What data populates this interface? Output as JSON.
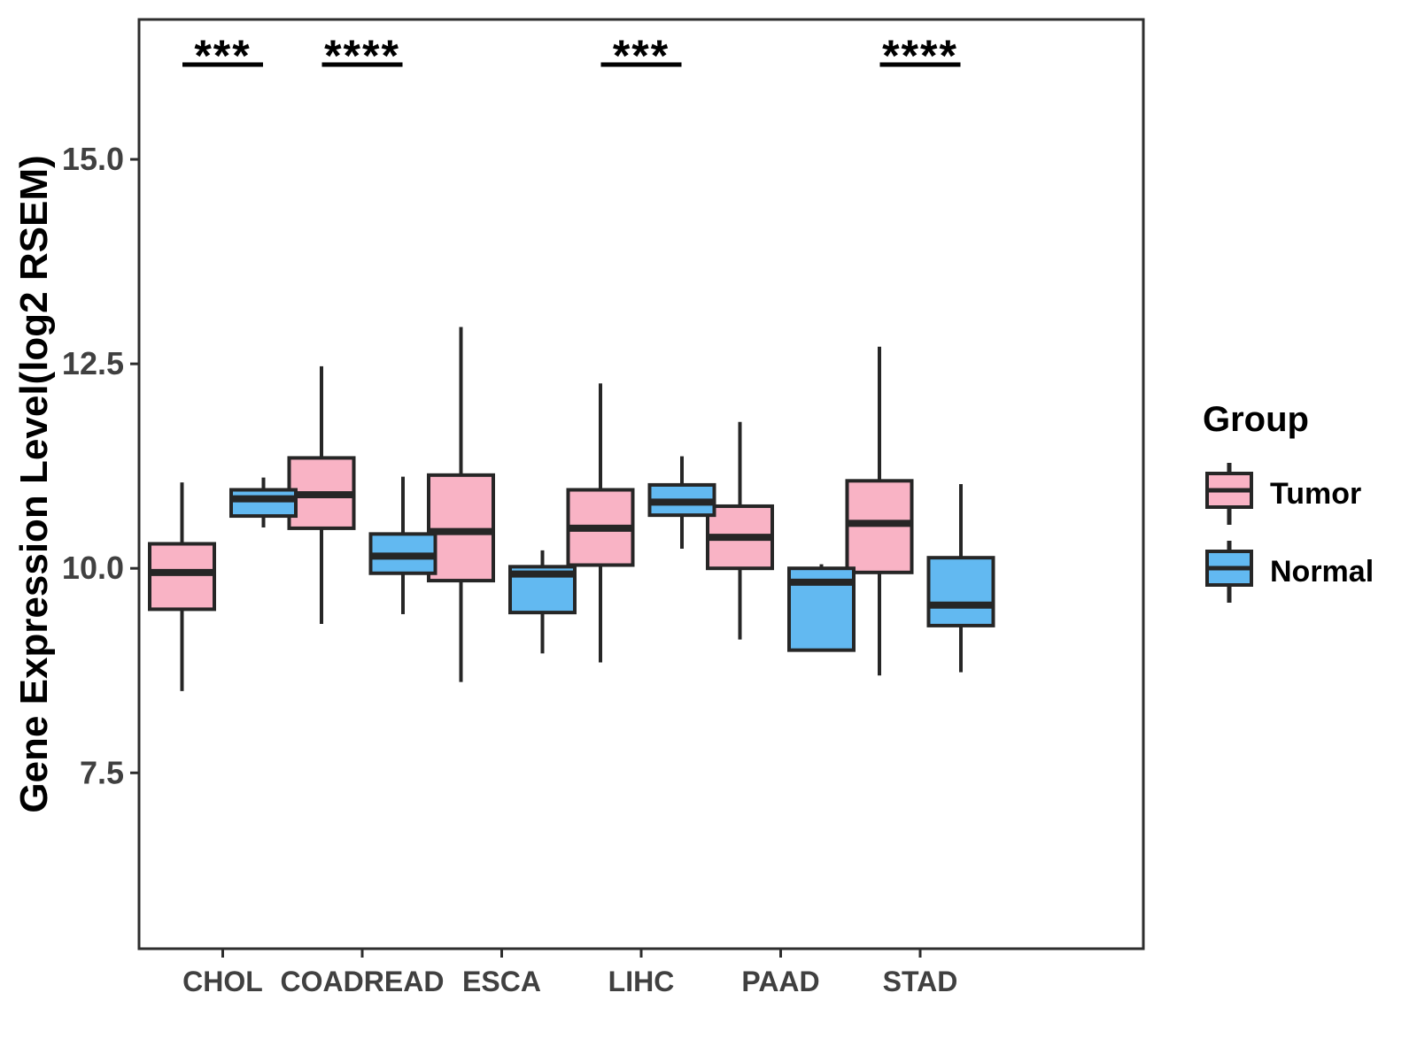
{
  "y_axis": {
    "label": "Gene Expression Level(log2 RSEM)",
    "ticks": [
      7.5,
      10.0,
      12.5,
      15.0
    ],
    "tick_labels": [
      "7.5",
      "10.0",
      "12.5",
      "15.0"
    ]
  },
  "x_axis": {
    "categories": [
      "CHOL",
      "COADREAD",
      "ESCA",
      "LIHC",
      "PAAD",
      "STAD"
    ]
  },
  "legend": {
    "title": "Group",
    "entries": [
      {
        "label": "Tumor",
        "color": "#F9B3C5"
      },
      {
        "label": "Normal",
        "color": "#62B9F1"
      }
    ]
  },
  "colors": {
    "tumor": "#F9B3C5",
    "normal": "#62B9F1",
    "box_stroke": "#262626",
    "panel_border": "#2e2e2e",
    "tick_text": "#404040",
    "annotation": "#000000"
  },
  "chart_data": {
    "type": "boxplot",
    "title": "",
    "xlabel": "",
    "ylabel": "Gene Expression Level(log2 RSEM)",
    "categories": [
      "CHOL",
      "COADREAD",
      "ESCA",
      "LIHC",
      "PAAD",
      "STAD"
    ],
    "groups": [
      "Tumor",
      "Normal"
    ],
    "ylim": [
      5.35,
      16.71
    ],
    "y_ticks": [
      7.5,
      10.0,
      12.5,
      15.0
    ],
    "grid": false,
    "legend_position": "right",
    "series": [
      {
        "name": "Tumor",
        "color": "#F9B3C5",
        "boxes": [
          {
            "category": "CHOL",
            "min": 8.5,
            "q1": 9.5,
            "median": 9.95,
            "q3": 10.3,
            "max": 11.05
          },
          {
            "category": "COADREAD",
            "min": 9.32,
            "q1": 10.49,
            "median": 10.9,
            "q3": 11.35,
            "max": 12.47
          },
          {
            "category": "ESCA",
            "min": 8.61,
            "q1": 9.85,
            "median": 10.45,
            "q3": 11.14,
            "max": 12.95
          },
          {
            "category": "LIHC",
            "min": 8.85,
            "q1": 10.04,
            "median": 10.49,
            "q3": 10.96,
            "max": 12.26
          },
          {
            "category": "PAAD",
            "min": 9.13,
            "q1": 10.0,
            "median": 10.38,
            "q3": 10.76,
            "max": 11.79
          },
          {
            "category": "STAD",
            "min": 8.69,
            "q1": 9.95,
            "median": 10.55,
            "q3": 11.07,
            "max": 12.71
          }
        ]
      },
      {
        "name": "Normal",
        "color": "#62B9F1",
        "boxes": [
          {
            "category": "CHOL",
            "min": 10.5,
            "q1": 10.64,
            "median": 10.85,
            "q3": 10.96,
            "max": 11.11
          },
          {
            "category": "COADREAD",
            "min": 9.44,
            "q1": 9.94,
            "median": 10.15,
            "q3": 10.42,
            "max": 11.12
          },
          {
            "category": "ESCA",
            "min": 8.96,
            "q1": 9.46,
            "median": 9.93,
            "q3": 10.02,
            "max": 10.22
          },
          {
            "category": "LIHC",
            "min": 10.24,
            "q1": 10.65,
            "median": 10.81,
            "q3": 11.02,
            "max": 11.37
          },
          {
            "category": "PAAD",
            "min": 8.99,
            "q1": 9.0,
            "median": 9.83,
            "q3": 10.0,
            "max": 10.05
          },
          {
            "category": "STAD",
            "min": 8.73,
            "q1": 9.3,
            "median": 9.55,
            "q3": 10.13,
            "max": 11.03
          }
        ]
      }
    ],
    "significance": [
      {
        "category": "CHOL",
        "label": "***"
      },
      {
        "category": "COADREAD",
        "label": "****"
      },
      {
        "category": "LIHC",
        "label": "***"
      },
      {
        "category": "STAD",
        "label": "****"
      }
    ]
  }
}
